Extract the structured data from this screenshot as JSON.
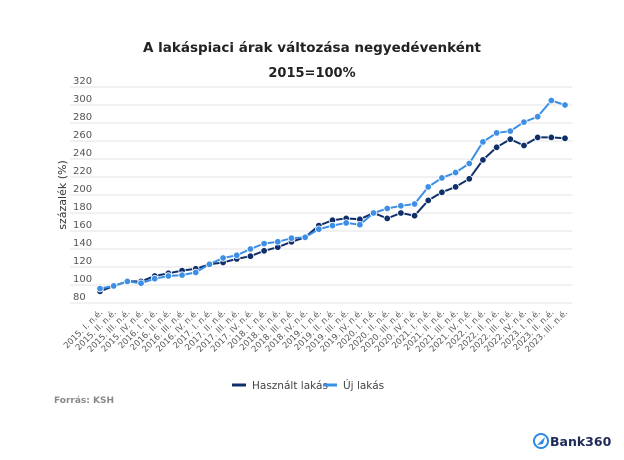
{
  "chart_data": {
    "type": "line",
    "title": "A lakáspiaci árak változása negyedévenként",
    "subtitle": "2015=100%",
    "xlabel": "",
    "ylabel": "százalék (%)",
    "ylim": [
      80,
      320
    ],
    "yticks": [
      80,
      100,
      120,
      140,
      160,
      180,
      200,
      220,
      240,
      260,
      280,
      300,
      320
    ],
    "grid": true,
    "legend": "bottom",
    "categories": [
      "2015. I. n.é.",
      "2015. II. n.é.",
      "2015. III. n.é.",
      "2015. IV. n.é.",
      "2016. I. n.é.",
      "2016. II. n.é.",
      "2016. III. n.é.",
      "2016. IV. n.é.",
      "2017. I. n.é.",
      "2017. II. n.é.",
      "2017. III. n.é.",
      "2017. IV. n.é.",
      "2018. I. n.é.",
      "2018. II. n.é.",
      "2018. III. n.é.",
      "2018. IV. n.é.",
      "2019. I. n.é.",
      "2019. II. n.é.",
      "2019. III. n.é.",
      "2019. IV. n.é.",
      "2020. I. n.é.",
      "2020. II. n.é.",
      "2020. III. n.é.",
      "2020. IV. n.é.",
      "2021. I. n.é.",
      "2021. II. n.é.",
      "2021. III. n.é.",
      "2021. IV. n.é.",
      "2022. I. n.é.",
      "2022. II. n.é.",
      "2022. III. n.é.",
      "2022. IV. n.é.",
      "2023. I. n.é.",
      "2023. II. n.é.",
      "2023. III. n.é."
    ],
    "series": [
      {
        "name": "Használt lakás",
        "color": "#0f2f6a",
        "values": [
          93,
          99,
          104,
          104,
          110,
          113,
          116,
          118,
          123,
          125,
          129,
          132,
          138,
          142,
          148,
          153,
          166,
          172,
          174,
          173,
          180,
          174,
          180,
          177,
          194,
          203,
          209,
          218,
          239,
          253,
          262,
          255,
          264,
          264,
          263
        ]
      },
      {
        "name": "Új lakás",
        "color": "#3d8fe6",
        "values": [
          96,
          99,
          104,
          102,
          107,
          110,
          111,
          114,
          123,
          130,
          133,
          140,
          146,
          148,
          152,
          153,
          162,
          166,
          169,
          167,
          180,
          185,
          188,
          190,
          209,
          219,
          225,
          235,
          259,
          269,
          271,
          281,
          287,
          305,
          300
        ]
      }
    ]
  },
  "source": "Forrás: KSH",
  "logo": {
    "text": "Bank360",
    "color": "#1e2a5a",
    "accent": "#2f8ae5"
  }
}
